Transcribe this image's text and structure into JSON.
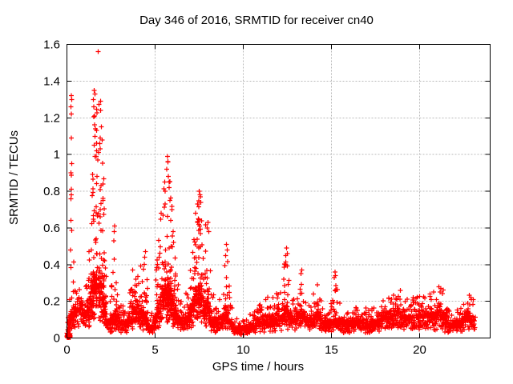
{
  "chart_data": {
    "type": "scatter",
    "title": "Day 346 of 2016, SRMTID for receiver cn40",
    "xlabel": "GPS time / hours",
    "ylabel": "SRMTID / TECUs",
    "xlim": [
      0,
      24
    ],
    "ylim": [
      0,
      1.6
    ],
    "xtick_values": [
      0,
      5,
      10,
      15,
      20
    ],
    "xtick_labels": [
      "0",
      "5",
      "10",
      "15",
      "20"
    ],
    "ytick_values": [
      0,
      0.2,
      0.4,
      0.6,
      0.8,
      1.0,
      1.2,
      1.4,
      1.6
    ],
    "ytick_labels": [
      "0",
      "0.2",
      "0.4",
      "0.6",
      "0.8",
      "1",
      "1.2",
      "1.4",
      "1.6"
    ],
    "grid": true,
    "grid_style": "dashed",
    "grid_color": "#b9b9b9",
    "marker": "plus",
    "marker_color": "#ff0000",
    "axis_color": "#000000",
    "series_name": "SRMTID",
    "data_x_range": [
      0.0,
      23.15
    ],
    "origin_cluster": {
      "x_range": [
        0.02,
        0.18
      ],
      "y_range": [
        0.0,
        0.025
      ],
      "count": 45
    },
    "envelope_columns": "triplets of [hour, typical_baseline, upper_envelope] in TECUs read from the plot",
    "envelope": [
      [
        0.0,
        0.01,
        0.03
      ],
      [
        0.18,
        0.1,
        0.3
      ],
      [
        0.25,
        0.12,
        1.32
      ],
      [
        0.32,
        0.12,
        0.5
      ],
      [
        0.55,
        0.14,
        0.25
      ],
      [
        0.75,
        0.16,
        0.28
      ],
      [
        1.0,
        0.12,
        0.22
      ],
      [
        1.25,
        0.15,
        0.45
      ],
      [
        1.45,
        0.25,
        1.1
      ],
      [
        1.6,
        0.28,
        1.36
      ],
      [
        1.8,
        0.3,
        1.57
      ],
      [
        1.95,
        0.28,
        1.22
      ],
      [
        2.1,
        0.18,
        0.85
      ],
      [
        2.3,
        0.07,
        0.16
      ],
      [
        2.5,
        0.08,
        0.25
      ],
      [
        2.7,
        0.12,
        0.62
      ],
      [
        2.85,
        0.1,
        0.35
      ],
      [
        3.1,
        0.07,
        0.18
      ],
      [
        3.4,
        0.08,
        0.2
      ],
      [
        3.7,
        0.13,
        0.35
      ],
      [
        4.0,
        0.15,
        0.42
      ],
      [
        4.3,
        0.12,
        0.48
      ],
      [
        4.5,
        0.1,
        0.45
      ],
      [
        4.7,
        0.05,
        0.12
      ],
      [
        4.9,
        0.06,
        0.15
      ],
      [
        5.1,
        0.12,
        0.45
      ],
      [
        5.35,
        0.18,
        0.7
      ],
      [
        5.6,
        0.24,
        0.92
      ],
      [
        5.75,
        0.25,
        1.0
      ],
      [
        5.9,
        0.22,
        0.8
      ],
      [
        6.1,
        0.15,
        0.5
      ],
      [
        6.35,
        0.1,
        0.3
      ],
      [
        6.6,
        0.08,
        0.2
      ],
      [
        6.85,
        0.1,
        0.35
      ],
      [
        7.1,
        0.15,
        0.5
      ],
      [
        7.35,
        0.2,
        0.7
      ],
      [
        7.55,
        0.22,
        0.81
      ],
      [
        7.75,
        0.18,
        0.62
      ],
      [
        8.0,
        0.15,
        0.64
      ],
      [
        8.2,
        0.1,
        0.3
      ],
      [
        8.5,
        0.08,
        0.18
      ],
      [
        8.8,
        0.1,
        0.25
      ],
      [
        9.05,
        0.14,
        0.52
      ],
      [
        9.25,
        0.09,
        0.25
      ],
      [
        9.5,
        0.05,
        0.12
      ],
      [
        9.8,
        0.04,
        0.1
      ],
      [
        10.1,
        0.05,
        0.11
      ],
      [
        10.5,
        0.06,
        0.15
      ],
      [
        10.9,
        0.08,
        0.18
      ],
      [
        11.3,
        0.09,
        0.22
      ],
      [
        11.7,
        0.1,
        0.26
      ],
      [
        12.1,
        0.1,
        0.28
      ],
      [
        12.45,
        0.14,
        0.5
      ],
      [
        12.7,
        0.1,
        0.24
      ],
      [
        13.0,
        0.1,
        0.22
      ],
      [
        13.3,
        0.12,
        0.38
      ],
      [
        13.6,
        0.09,
        0.2
      ],
      [
        13.95,
        0.1,
        0.24
      ],
      [
        14.2,
        0.11,
        0.3
      ],
      [
        14.55,
        0.08,
        0.18
      ],
      [
        14.85,
        0.07,
        0.15
      ],
      [
        15.2,
        0.1,
        0.37
      ],
      [
        15.5,
        0.08,
        0.18
      ],
      [
        15.9,
        0.07,
        0.16
      ],
      [
        16.3,
        0.08,
        0.19
      ],
      [
        16.7,
        0.08,
        0.18
      ],
      [
        17.1,
        0.07,
        0.16
      ],
      [
        17.5,
        0.08,
        0.18
      ],
      [
        17.9,
        0.1,
        0.22
      ],
      [
        18.3,
        0.11,
        0.24
      ],
      [
        18.7,
        0.12,
        0.27
      ],
      [
        19.0,
        0.11,
        0.24
      ],
      [
        19.4,
        0.1,
        0.22
      ],
      [
        19.8,
        0.11,
        0.24
      ],
      [
        20.2,
        0.12,
        0.26
      ],
      [
        20.6,
        0.12,
        0.26
      ],
      [
        21.0,
        0.13,
        0.28
      ],
      [
        21.3,
        0.12,
        0.29
      ],
      [
        21.6,
        0.08,
        0.16
      ],
      [
        21.9,
        0.06,
        0.14
      ],
      [
        22.2,
        0.08,
        0.18
      ],
      [
        22.5,
        0.1,
        0.22
      ],
      [
        22.8,
        0.11,
        0.24
      ],
      [
        23.05,
        0.1,
        0.22
      ],
      [
        23.15,
        0.09,
        0.18
      ]
    ],
    "notable_points": [
      [
        0.22,
        1.26
      ],
      [
        0.25,
        1.32
      ],
      [
        0.28,
        1.3
      ],
      [
        0.25,
        1.22
      ],
      [
        0.24,
        1.09
      ],
      [
        0.27,
        0.95
      ],
      [
        0.22,
        0.9
      ],
      [
        0.26,
        0.81
      ],
      [
        0.23,
        0.64
      ],
      [
        0.21,
        0.48
      ],
      [
        1.5,
        1.3
      ],
      [
        1.55,
        1.35
      ],
      [
        1.6,
        1.33
      ],
      [
        1.52,
        1.26
      ],
      [
        1.57,
        1.21
      ],
      [
        1.62,
        1.14
      ],
      [
        1.55,
        1.05
      ],
      [
        1.66,
        0.99
      ],
      [
        1.7,
        0.88
      ],
      [
        1.77,
        1.56
      ],
      [
        1.9,
        1.29
      ],
      [
        1.92,
        1.24
      ],
      [
        1.95,
        1.15
      ],
      [
        2.0,
        1.08
      ],
      [
        2.05,
        0.84
      ],
      [
        2.68,
        0.58
      ],
      [
        2.7,
        0.61
      ],
      [
        3.73,
        0.37
      ],
      [
        4.4,
        0.44
      ],
      [
        4.45,
        0.47
      ],
      [
        5.35,
        0.68
      ],
      [
        5.55,
        0.85
      ],
      [
        5.65,
        0.92
      ],
      [
        5.7,
        0.99
      ],
      [
        5.73,
        0.96
      ],
      [
        5.75,
        0.88
      ],
      [
        5.8,
        0.82
      ],
      [
        5.85,
        0.75
      ],
      [
        5.95,
        0.7
      ],
      [
        6.05,
        0.52
      ],
      [
        7.3,
        0.68
      ],
      [
        7.4,
        0.73
      ],
      [
        7.45,
        0.65
      ],
      [
        7.5,
        0.8
      ],
      [
        7.55,
        0.78
      ],
      [
        7.6,
        0.74
      ],
      [
        7.95,
        0.6
      ],
      [
        8.0,
        0.63
      ],
      [
        8.05,
        0.58
      ],
      [
        9.0,
        0.45
      ],
      [
        9.05,
        0.51
      ],
      [
        9.08,
        0.48
      ],
      [
        12.4,
        0.45
      ],
      [
        12.42,
        0.4
      ],
      [
        12.45,
        0.49
      ],
      [
        12.5,
        0.46
      ],
      [
        13.28,
        0.35
      ],
      [
        13.32,
        0.37
      ],
      [
        14.2,
        0.29
      ],
      [
        15.15,
        0.33
      ],
      [
        15.2,
        0.36
      ],
      [
        15.22,
        0.34
      ],
      [
        18.9,
        0.26
      ],
      [
        21.1,
        0.28
      ],
      [
        21.2,
        0.27
      ],
      [
        21.15,
        0.25
      ],
      [
        22.9,
        0.22
      ]
    ]
  }
}
